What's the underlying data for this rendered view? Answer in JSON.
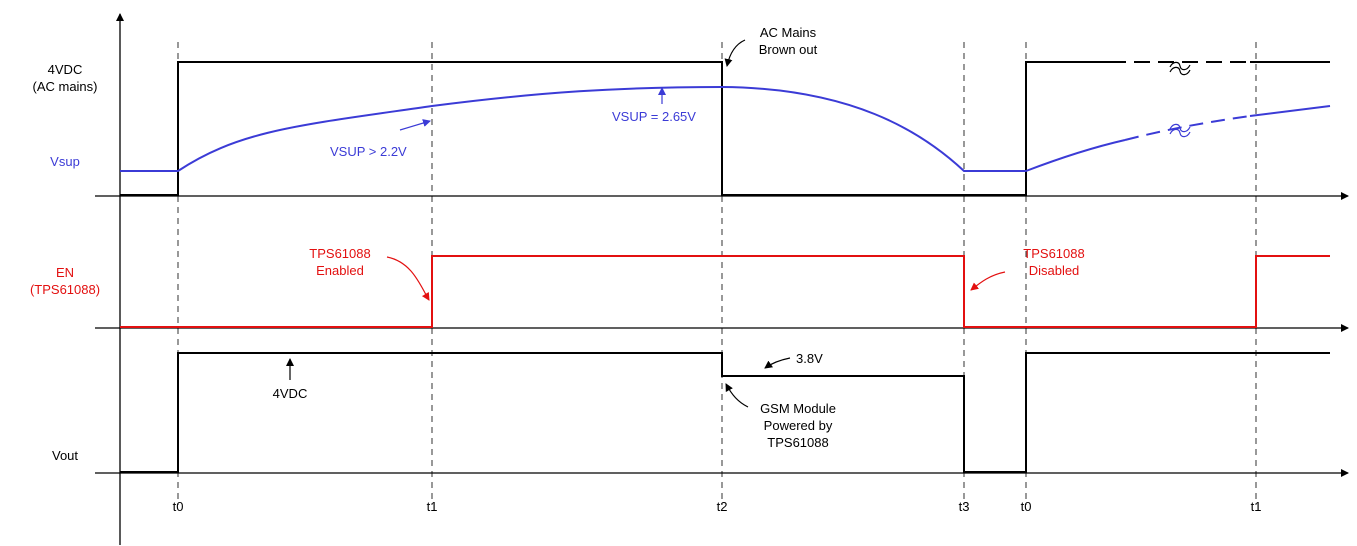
{
  "signals": {
    "ac_mains": {
      "label_line1": "4VDC",
      "label_line2": "(AC mains)",
      "color": "#000000"
    },
    "vsup": {
      "label": "Vsup",
      "color": "#3b3bd6"
    },
    "en": {
      "label_line1": "EN",
      "label_line2": "(TPS61088)",
      "color": "#e31010"
    },
    "vout": {
      "label": "Vout",
      "color": "#000000"
    }
  },
  "time_markers": [
    "t0",
    "t1",
    "t2",
    "t3",
    "t0",
    "t1"
  ],
  "annotations": {
    "vsup_threshold": "VSUP > 2.2V",
    "vsup_peak": "VSUP = 2.65V",
    "brownout_line1": "AC Mains",
    "brownout_line2": "Brown out",
    "enabled_line1": "TPS61088",
    "enabled_line2": "Enabled",
    "disabled_line1": "TPS61088",
    "disabled_line2": "Disabled",
    "vout_4vdc": "4VDC",
    "vout_3v8": "3.8V",
    "gsm_line1": "GSM Module",
    "gsm_line2": "Powered by",
    "gsm_line3": "TPS61088"
  },
  "colors": {
    "axis": "#000000",
    "vsup": "#3b3bd6",
    "enable": "#e31010"
  }
}
